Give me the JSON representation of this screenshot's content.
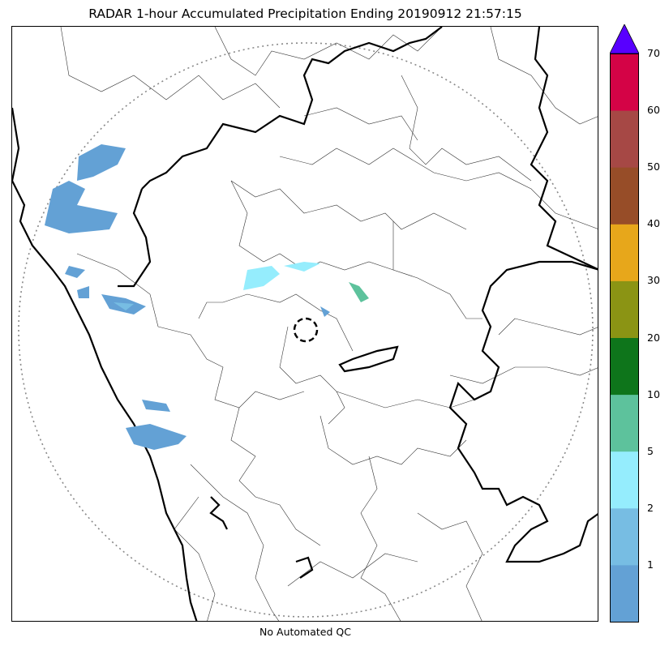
{
  "title": "RADAR 1-hour Accumulated Precipitation Ending 20190912 21:57:15",
  "footer_note": "No Automated QC",
  "colorbar": {
    "levels": [
      0,
      1,
      2,
      5,
      10,
      20,
      30,
      40,
      50,
      60,
      70
    ],
    "tick_labels": [
      "1",
      "2",
      "5",
      "10",
      "20",
      "30",
      "40",
      "50",
      "60",
      "70"
    ],
    "colors": [
      "#63a1d5",
      "#77bde3",
      "#95edfd",
      "#5dc29c",
      "#0e751b",
      "#8b9414",
      "#e7a71b",
      "#974d28",
      "#a64845",
      "#d40346"
    ],
    "over_color": "#5800ff"
  },
  "map": {
    "radar_range_ring": true,
    "center_marker": "dashed-circle"
  }
}
